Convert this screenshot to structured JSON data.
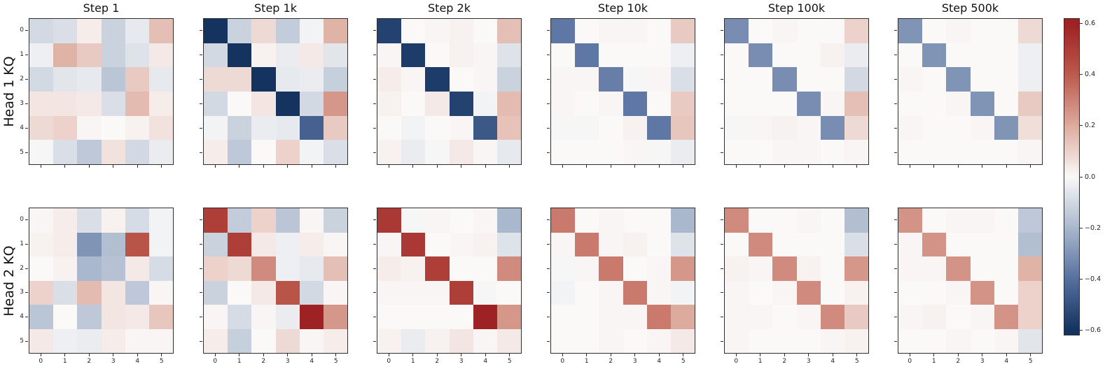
{
  "chart_data": {
    "type": "heatmap",
    "title": "",
    "rows": [
      "Head 1 KQ",
      "Head 2 KQ"
    ],
    "columns": [
      "Step 1",
      "Step 1k",
      "Step 2k",
      "Step 10k",
      "Step 100k",
      "Step 500k"
    ],
    "x_tick_labels": [
      "0",
      "1",
      "2",
      "3",
      "4",
      "5"
    ],
    "y_tick_labels": [
      "0",
      "1",
      "2",
      "3",
      "4",
      "5"
    ],
    "vmin": -0.6,
    "vmax": 0.6,
    "colormap": "RdBu_r",
    "colormap_stops": [
      [
        -0.6,
        "#14335f"
      ],
      [
        -0.4,
        "#56709f"
      ],
      [
        -0.2,
        "#aab8cd"
      ],
      [
        0.0,
        "#faf9f8"
      ],
      [
        0.2,
        "#ddab9e"
      ],
      [
        0.4,
        "#bc5a4d"
      ],
      [
        0.6,
        "#9e2123"
      ]
    ],
    "colorbar": {
      "tick_labels": [
        "0.6",
        "0.4",
        "0.2",
        "0.0",
        "−0.2",
        "−0.4",
        "−0.6"
      ],
      "tick_values": [
        0.6,
        0.4,
        0.2,
        0.0,
        -0.2,
        -0.4,
        -0.6
      ]
    },
    "grids": [
      {
        "row": "Head 1 KQ",
        "col": "Step 1",
        "values": [
          [
            -0.1,
            -0.08,
            0.03,
            -0.12,
            -0.05,
            0.15
          ],
          [
            -0.03,
            0.18,
            0.12,
            -0.12,
            -0.07,
            0.04
          ],
          [
            -0.1,
            -0.06,
            -0.05,
            -0.16,
            0.12,
            -0.05
          ],
          [
            0.05,
            0.05,
            0.04,
            -0.08,
            0.16,
            0.03
          ],
          [
            0.08,
            0.1,
            0.01,
            0.0,
            0.02,
            0.06
          ],
          [
            -0.01,
            -0.08,
            -0.15,
            0.06,
            -0.1,
            -0.04
          ]
        ]
      },
      {
        "row": "Head 1 KQ",
        "col": "Step 1k",
        "values": [
          [
            -0.6,
            -0.12,
            0.08,
            -0.14,
            -0.02,
            0.18
          ],
          [
            -0.1,
            -0.6,
            0.02,
            -0.04,
            0.04,
            -0.06
          ],
          [
            0.08,
            0.08,
            -0.6,
            -0.05,
            -0.04,
            -0.13
          ],
          [
            -0.1,
            0.0,
            0.05,
            -0.6,
            -0.1,
            0.25
          ],
          [
            -0.02,
            -0.12,
            -0.04,
            -0.05,
            -0.45,
            0.12
          ],
          [
            0.03,
            -0.15,
            0.0,
            0.1,
            -0.02,
            -0.08
          ]
        ]
      },
      {
        "row": "Head 1 KQ",
        "col": "Step 2k",
        "values": [
          [
            -0.55,
            0.0,
            0.01,
            0.02,
            0.0,
            0.15
          ],
          [
            0.01,
            -0.57,
            0.0,
            0.02,
            0.01,
            -0.07
          ],
          [
            0.03,
            0.01,
            -0.57,
            0.0,
            0.01,
            -0.12
          ],
          [
            0.02,
            0.0,
            0.04,
            -0.55,
            -0.02,
            0.16
          ],
          [
            0.0,
            -0.02,
            0.0,
            0.01,
            -0.48,
            0.14
          ],
          [
            0.02,
            -0.04,
            -0.01,
            0.04,
            0.01,
            -0.05
          ]
        ]
      },
      {
        "row": "Head 1 KQ",
        "col": "Step 10k",
        "values": [
          [
            -0.38,
            0.0,
            0.01,
            0.01,
            0.0,
            0.12
          ],
          [
            0.0,
            -0.38,
            0.0,
            0.0,
            0.0,
            -0.03
          ],
          [
            0.01,
            0.01,
            -0.36,
            -0.01,
            0.01,
            -0.08
          ],
          [
            0.01,
            0.0,
            0.01,
            -0.38,
            0.0,
            0.12
          ],
          [
            -0.01,
            -0.01,
            0.0,
            0.02,
            -0.38,
            0.13
          ],
          [
            0.0,
            0.0,
            0.0,
            0.01,
            -0.01,
            -0.04
          ]
        ]
      },
      {
        "row": "Head 1 KQ",
        "col": "Step 100k",
        "values": [
          [
            -0.32,
            0.0,
            0.01,
            0.0,
            0.0,
            0.1
          ],
          [
            0.0,
            -0.32,
            0.0,
            0.0,
            0.02,
            -0.04
          ],
          [
            0.0,
            0.0,
            -0.32,
            0.0,
            0.0,
            -0.1
          ],
          [
            0.0,
            0.0,
            0.0,
            -0.32,
            0.01,
            0.15
          ],
          [
            -0.01,
            0.01,
            0.02,
            0.01,
            -0.32,
            0.08
          ],
          [
            0.0,
            0.0,
            0.01,
            0.01,
            0.0,
            0.01
          ]
        ]
      },
      {
        "row": "Head 1 KQ",
        "col": "Step 500k",
        "values": [
          [
            -0.3,
            0.0,
            0.01,
            0.0,
            0.0,
            0.08
          ],
          [
            0.0,
            -0.3,
            0.0,
            0.0,
            0.0,
            -0.03
          ],
          [
            0.01,
            0.0,
            -0.3,
            0.0,
            0.0,
            -0.03
          ],
          [
            0.0,
            0.0,
            0.01,
            -0.3,
            0.0,
            0.12
          ],
          [
            0.01,
            0.0,
            0.0,
            0.01,
            -0.3,
            0.07
          ],
          [
            0.0,
            0.0,
            0.0,
            0.0,
            0.0,
            0.01
          ]
        ]
      },
      {
        "row": "Head 2 KQ",
        "col": "Step 1",
        "values": [
          [
            0.01,
            0.03,
            -0.08,
            0.02,
            -0.09,
            -0.02
          ],
          [
            0.02,
            0.03,
            -0.3,
            -0.18,
            0.42,
            -0.02
          ],
          [
            0.0,
            0.02,
            -0.2,
            -0.17,
            0.04,
            -0.09
          ],
          [
            0.1,
            -0.08,
            0.16,
            0.05,
            -0.15,
            0.01
          ],
          [
            -0.16,
            0.0,
            -0.15,
            0.05,
            0.04,
            0.13
          ],
          [
            0.04,
            -0.03,
            -0.04,
            0.03,
            0.01,
            0.01
          ]
        ]
      },
      {
        "row": "Head 2 KQ",
        "col": "Step 1k",
        "values": [
          [
            0.5,
            -0.14,
            0.1,
            -0.16,
            0.01,
            -0.12
          ],
          [
            -0.12,
            0.5,
            0.04,
            -0.03,
            0.03,
            0.01
          ],
          [
            0.1,
            0.08,
            0.28,
            -0.03,
            -0.05,
            0.15
          ],
          [
            -0.12,
            0.0,
            0.04,
            0.42,
            -0.1,
            0.01
          ],
          [
            0.01,
            -0.09,
            0.01,
            -0.04,
            0.6,
            0.25
          ],
          [
            0.03,
            -0.13,
            0.0,
            0.08,
            0.01,
            0.03
          ]
        ]
      },
      {
        "row": "Head 2 KQ",
        "col": "Step 2k",
        "values": [
          [
            0.52,
            -0.01,
            0.01,
            0.0,
            0.01,
            -0.2
          ],
          [
            0.01,
            0.52,
            0.0,
            0.01,
            0.02,
            -0.07
          ],
          [
            0.03,
            0.02,
            0.5,
            0.0,
            0.0,
            0.28
          ],
          [
            0.01,
            0.01,
            0.01,
            0.5,
            -0.01,
            0.0
          ],
          [
            0.0,
            0.0,
            0.0,
            0.0,
            0.6,
            0.25
          ],
          [
            0.02,
            -0.04,
            0.02,
            0.05,
            0.01,
            0.04
          ]
        ]
      },
      {
        "row": "Head 2 KQ",
        "col": "Step 10k",
        "values": [
          [
            0.32,
            0.0,
            0.01,
            0.0,
            0.0,
            -0.2
          ],
          [
            0.01,
            0.32,
            0.01,
            0.02,
            0.0,
            -0.07
          ],
          [
            -0.01,
            0.01,
            0.32,
            0.0,
            0.01,
            0.25
          ],
          [
            -0.02,
            0.0,
            0.01,
            0.32,
            0.01,
            -0.02
          ],
          [
            0.0,
            0.0,
            0.01,
            0.01,
            0.32,
            0.2
          ],
          [
            0.0,
            0.0,
            0.01,
            0.0,
            0.01,
            0.04
          ]
        ]
      },
      {
        "row": "Head 2 KQ",
        "col": "Step 100k",
        "values": [
          [
            0.28,
            0.0,
            0.0,
            0.01,
            0.0,
            -0.18
          ],
          [
            0.0,
            0.28,
            0.0,
            0.0,
            0.0,
            -0.08
          ],
          [
            0.02,
            0.01,
            0.28,
            0.02,
            0.0,
            0.25
          ],
          [
            0.01,
            0.0,
            0.01,
            0.28,
            0.0,
            0.02
          ],
          [
            0.01,
            0.01,
            0.0,
            0.01,
            0.28,
            0.12
          ],
          [
            0.01,
            0.0,
            0.0,
            0.0,
            0.01,
            0.02
          ]
        ]
      },
      {
        "row": "Head 2 KQ",
        "col": "Step 500k",
        "values": [
          [
            0.26,
            0.0,
            0.01,
            0.01,
            0.0,
            -0.15
          ],
          [
            0.01,
            0.26,
            0.0,
            0.0,
            0.0,
            -0.18
          ],
          [
            0.01,
            0.01,
            0.26,
            0.0,
            0.0,
            0.18
          ],
          [
            0.0,
            0.0,
            0.01,
            0.26,
            0.0,
            0.1
          ],
          [
            0.01,
            0.02,
            0.0,
            0.01,
            0.26,
            0.1
          ],
          [
            0.0,
            0.0,
            0.01,
            0.0,
            0.01,
            -0.06
          ]
        ]
      }
    ]
  }
}
